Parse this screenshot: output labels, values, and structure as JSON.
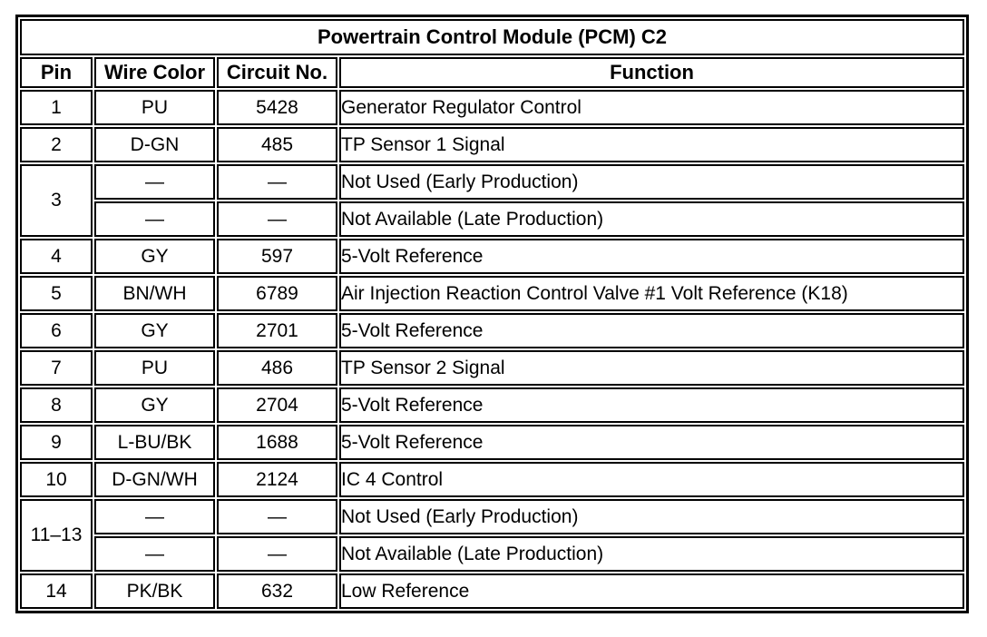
{
  "title": "Powertrain Control Module (PCM) C2",
  "columns": [
    "Pin",
    "Wire Color",
    "Circuit No.",
    "Function"
  ],
  "rows": [
    {
      "pin": "1",
      "pin_rowspan": 1,
      "wire": "PU",
      "circuit": "5428",
      "function": "Generator Regulator Control"
    },
    {
      "pin": "2",
      "pin_rowspan": 1,
      "wire": "D-GN",
      "circuit": "485",
      "function": "TP Sensor 1 Signal"
    },
    {
      "pin": "3",
      "pin_rowspan": 2,
      "wire": "—",
      "circuit": "—",
      "function": "Not Used (Early Production)"
    },
    {
      "pin": null,
      "pin_rowspan": 0,
      "wire": "—",
      "circuit": "—",
      "function": "Not Available (Late Production)"
    },
    {
      "pin": "4",
      "pin_rowspan": 1,
      "wire": "GY",
      "circuit": "597",
      "function": "5-Volt Reference"
    },
    {
      "pin": "5",
      "pin_rowspan": 1,
      "wire": "BN/WH",
      "circuit": "6789",
      "function": "Air Injection Reaction Control Valve #1 Volt Reference (K18)"
    },
    {
      "pin": "6",
      "pin_rowspan": 1,
      "wire": "GY",
      "circuit": "2701",
      "function": "5-Volt Reference"
    },
    {
      "pin": "7",
      "pin_rowspan": 1,
      "wire": "PU",
      "circuit": "486",
      "function": "TP Sensor 2 Signal"
    },
    {
      "pin": "8",
      "pin_rowspan": 1,
      "wire": "GY",
      "circuit": "2704",
      "function": "5-Volt Reference"
    },
    {
      "pin": "9",
      "pin_rowspan": 1,
      "wire": "L-BU/BK",
      "circuit": "1688",
      "function": "5-Volt Reference"
    },
    {
      "pin": "10",
      "pin_rowspan": 1,
      "wire": "D-GN/WH",
      "circuit": "2124",
      "function": "IC 4 Control"
    },
    {
      "pin": "11–13",
      "pin_rowspan": 2,
      "wire": "—",
      "circuit": "—",
      "function": "Not Used (Early Production)"
    },
    {
      "pin": null,
      "pin_rowspan": 0,
      "wire": "—",
      "circuit": "—",
      "function": "Not Available (Late Production)"
    },
    {
      "pin": "14",
      "pin_rowspan": 1,
      "wire": "PK/BK",
      "circuit": "632",
      "function": "Low Reference"
    }
  ],
  "colors": {
    "border": "#000000",
    "text": "#000000",
    "background": "#ffffff"
  }
}
